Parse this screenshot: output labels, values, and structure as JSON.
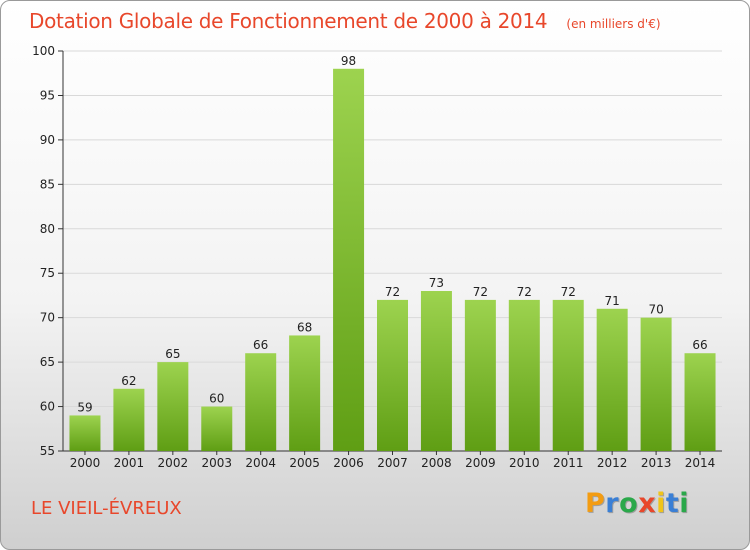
{
  "chart_data": {
    "type": "bar",
    "title": "Dotation Globale de Fonctionnement de 2000 à 2014",
    "unit_label": "(en milliers d'€)",
    "categories": [
      "2000",
      "2001",
      "2002",
      "2003",
      "2004",
      "2005",
      "2006",
      "2007",
      "2008",
      "2009",
      "2010",
      "2011",
      "2012",
      "2013",
      "2014"
    ],
    "values": [
      59,
      62,
      65,
      60,
      66,
      68,
      98,
      72,
      73,
      72,
      72,
      72,
      71,
      70,
      66
    ],
    "ylim": [
      55,
      100
    ],
    "yticks": [
      55,
      60,
      65,
      70,
      75,
      80,
      85,
      90,
      95,
      100
    ],
    "grid": true,
    "data_labels": true,
    "colors": {
      "bar_top": "#9dd34f",
      "bar_bottom": "#5f9e14",
      "grid": "#d9d9d9",
      "title": "#e8472b"
    }
  },
  "commune": "LE VIEIL-ÉVREUX",
  "logo": {
    "letters": [
      "P",
      "r",
      "o",
      "x",
      "i",
      "t",
      "i"
    ],
    "colors": [
      "#f39c12",
      "#3a7fd5",
      "#2aa84a",
      "#e8472b",
      "#f0c419",
      "#3a7fd5",
      "#2aa84a"
    ]
  }
}
